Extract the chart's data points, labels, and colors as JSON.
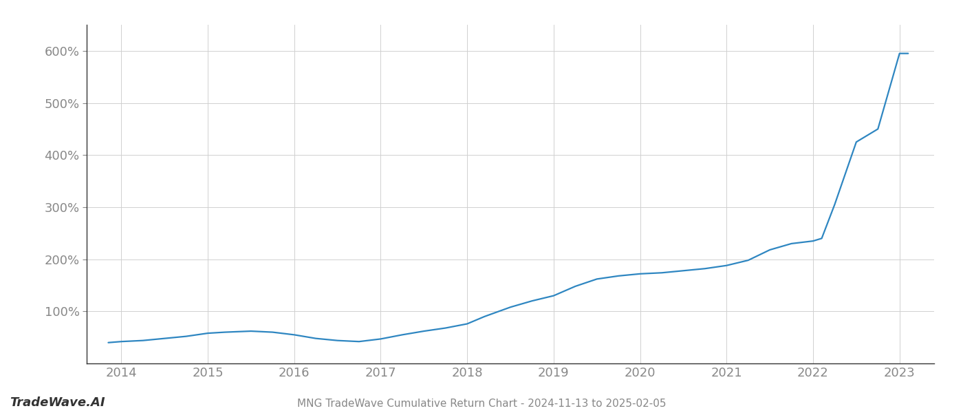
{
  "title": "MNG TradeWave Cumulative Return Chart - 2024-11-13 to 2025-02-05",
  "watermark": "TradeWave.AI",
  "line_color": "#2e86c1",
  "background_color": "#ffffff",
  "grid_color": "#d0d0d0",
  "x_years": [
    2014,
    2015,
    2016,
    2017,
    2018,
    2019,
    2020,
    2021,
    2022,
    2023
  ],
  "x_values": [
    2013.85,
    2014.0,
    2014.25,
    2014.5,
    2014.75,
    2015.0,
    2015.2,
    2015.5,
    2015.75,
    2016.0,
    2016.25,
    2016.5,
    2016.75,
    2017.0,
    2017.25,
    2017.5,
    2017.75,
    2018.0,
    2018.2,
    2018.5,
    2018.75,
    2019.0,
    2019.25,
    2019.5,
    2019.75,
    2020.0,
    2020.25,
    2020.5,
    2020.75,
    2021.0,
    2021.25,
    2021.5,
    2021.75,
    2022.0,
    2022.1,
    2022.25,
    2022.5,
    2022.75,
    2023.0,
    2023.1
  ],
  "y_values": [
    40,
    42,
    44,
    48,
    52,
    58,
    60,
    62,
    60,
    55,
    48,
    44,
    42,
    47,
    55,
    62,
    68,
    76,
    90,
    108,
    120,
    130,
    148,
    162,
    168,
    172,
    174,
    178,
    182,
    188,
    198,
    218,
    230,
    235,
    240,
    305,
    425,
    450,
    595,
    595
  ],
  "yticks": [
    100,
    200,
    300,
    400,
    500,
    600
  ],
  "ytick_labels": [
    "100%",
    "200%",
    "300%",
    "400%",
    "500%",
    "600%"
  ],
  "ylim": [
    0,
    650
  ],
  "xlim": [
    2013.6,
    2023.4
  ],
  "title_fontsize": 11,
  "tick_fontsize": 13,
  "watermark_fontsize": 13,
  "line_width": 1.6,
  "axis_color": "#333333",
  "tick_color": "#888888",
  "spine_color": "#333333"
}
